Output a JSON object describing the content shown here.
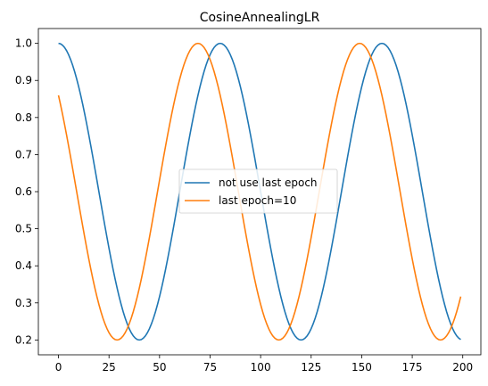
{
  "chart_data": {
    "type": "line",
    "title": "CosineAnnealingLR",
    "xlabel": "",
    "ylabel": "",
    "xlim": [
      -9.95,
      208.95
    ],
    "ylim": [
      0.16,
      1.04
    ],
    "x_ticks": [
      0,
      25,
      50,
      75,
      100,
      125,
      150,
      175,
      200
    ],
    "y_ticks": [
      0.2,
      0.3,
      0.4,
      0.5,
      0.6,
      0.7,
      0.8,
      0.9,
      1.0
    ],
    "x_tick_labels": [
      "0",
      "25",
      "50",
      "75",
      "100",
      "125",
      "150",
      "175",
      "200"
    ],
    "y_tick_labels": [
      "0.2",
      "0.3",
      "0.4",
      "0.5",
      "0.6",
      "0.7",
      "0.8",
      "0.9",
      "1.0"
    ],
    "grid": false,
    "legend_position": "center",
    "x": {
      "start": 0,
      "end": 199,
      "step": 1
    },
    "series": [
      {
        "name": "not use last epoch",
        "color": "#1f77b4",
        "formula": "0.2 + 0.4*(1+cos(pi*x/40))",
        "x_start": 0,
        "x_end": 199
      },
      {
        "name": "last epoch=10",
        "color": "#ff7f0e",
        "formula": "0.2 + 0.4*(1+cos(pi*(x+11)/40))",
        "x_start": 0,
        "x_end": 199
      }
    ]
  }
}
